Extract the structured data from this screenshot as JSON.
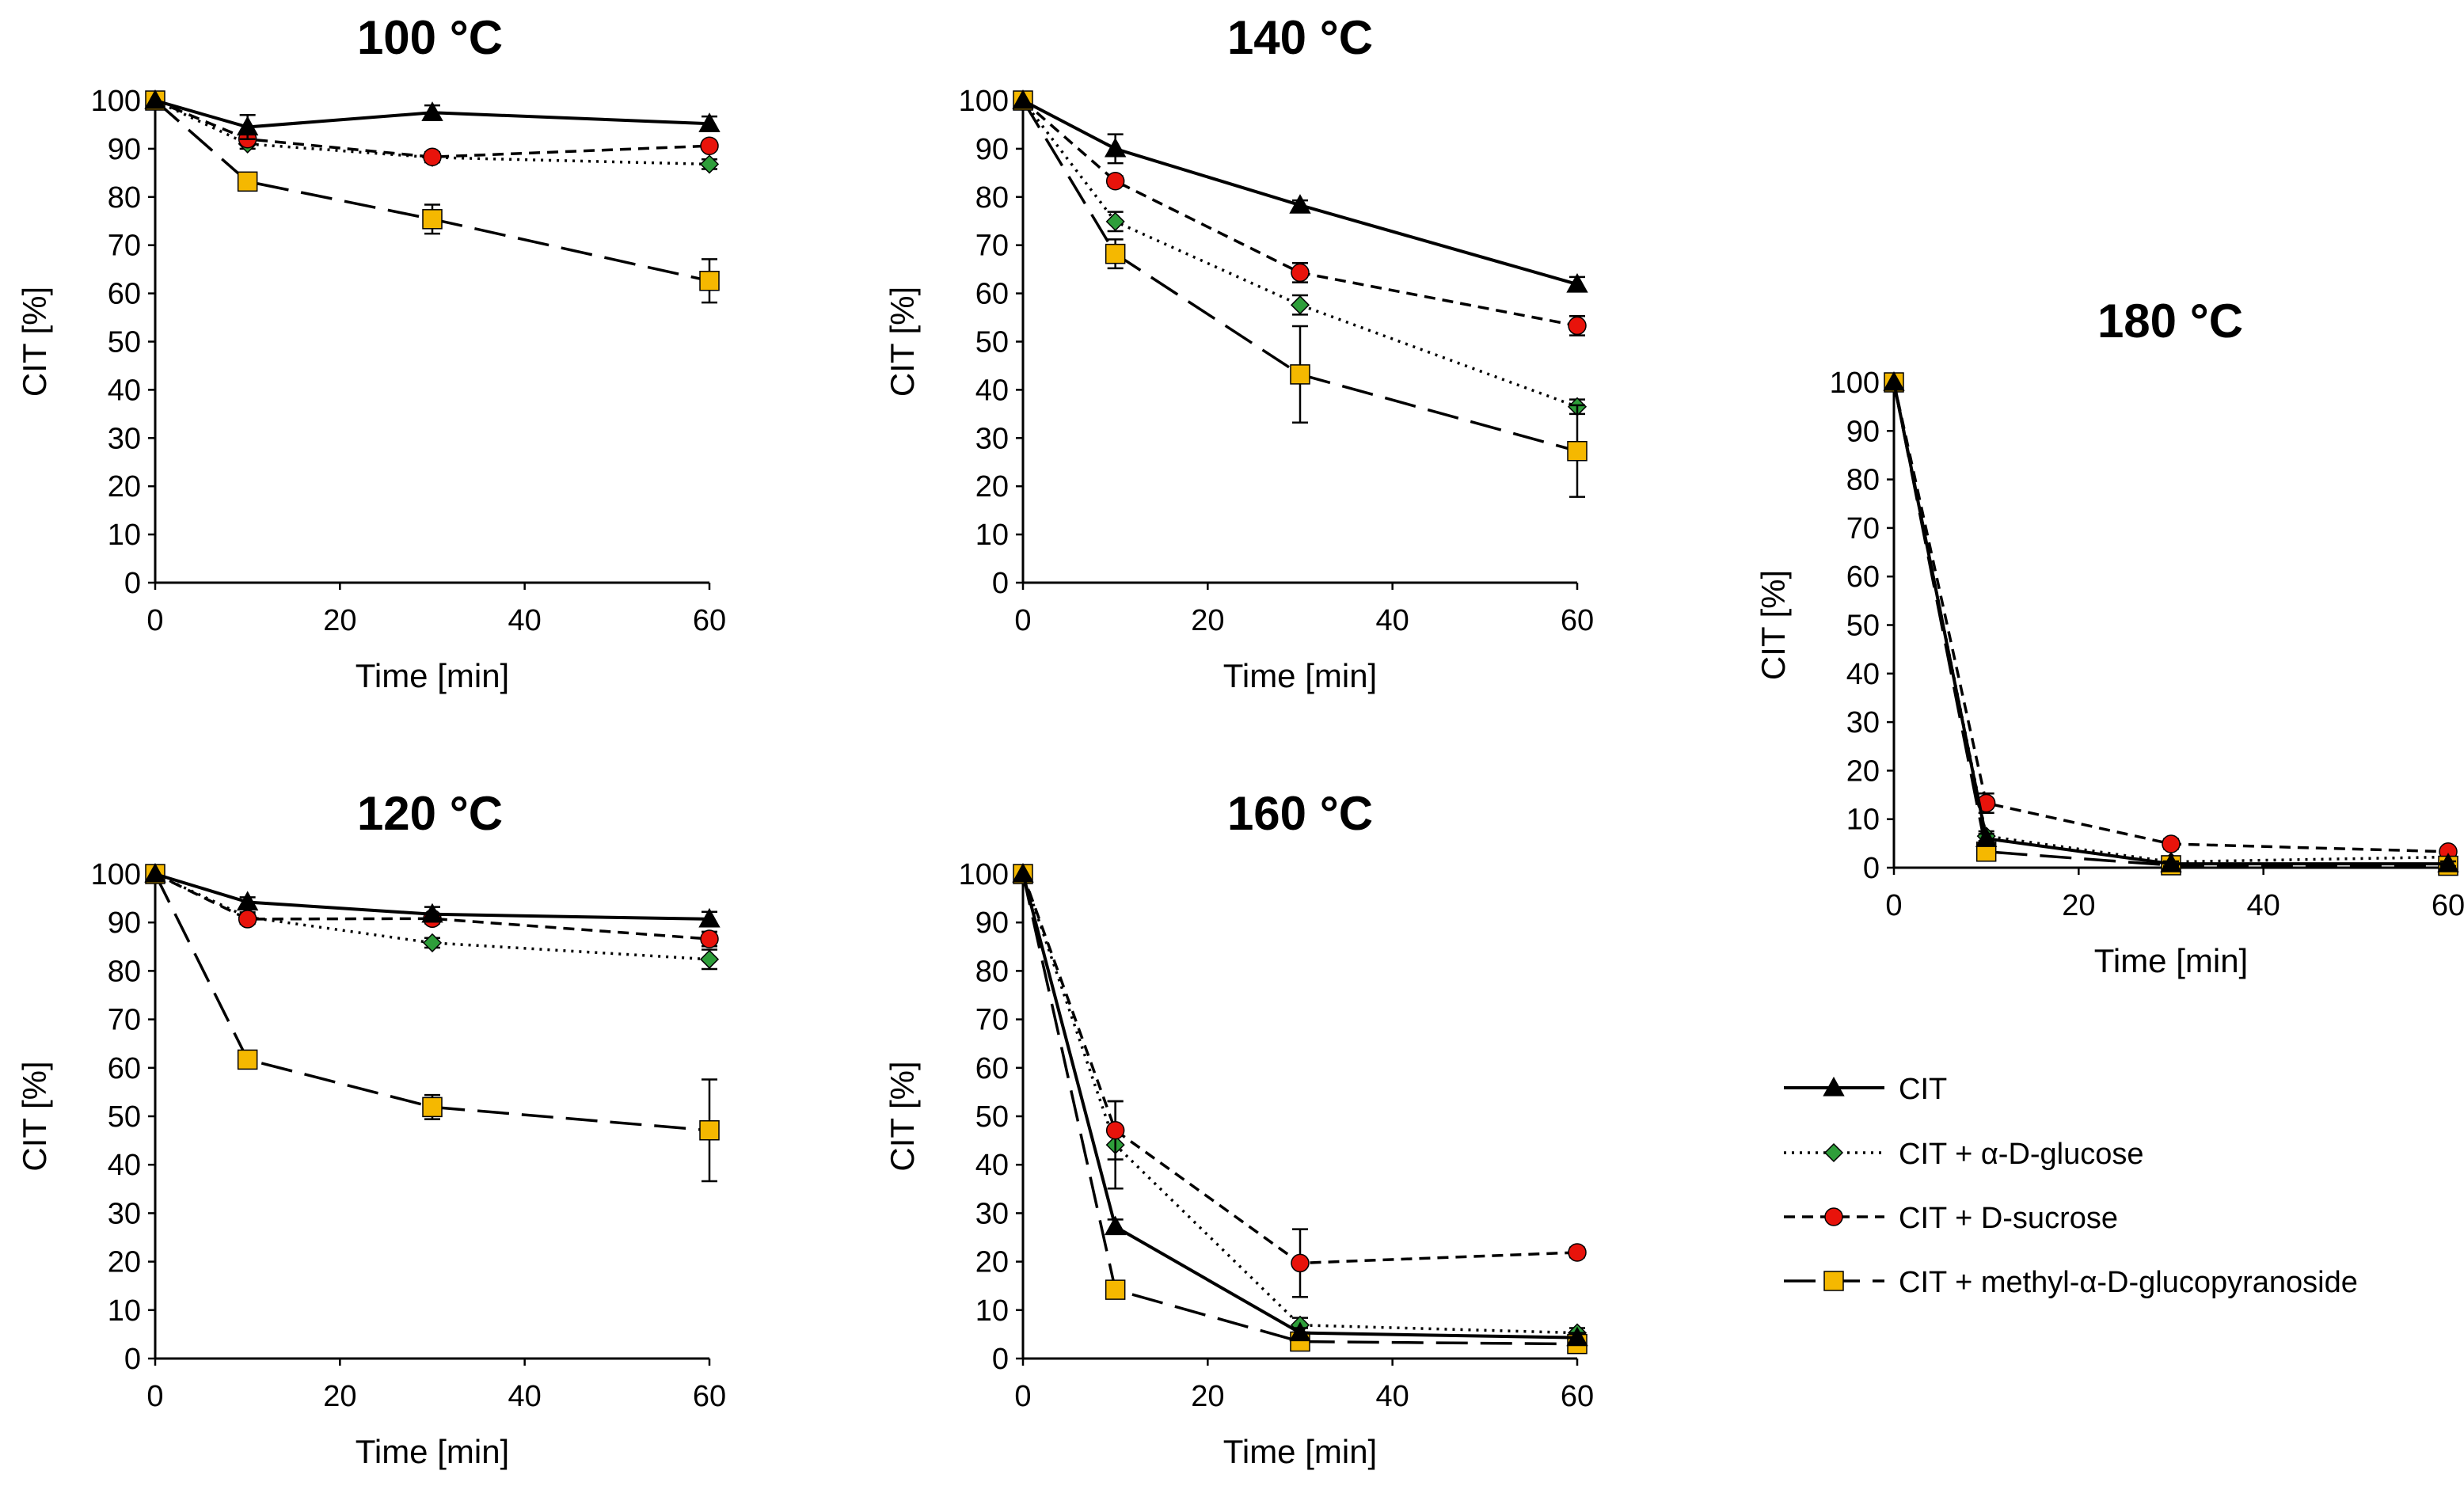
{
  "series_styles": [
    {
      "key": "cit",
      "name": "CIT",
      "marker": "triangle",
      "marker_color": "#000000",
      "dash": "solid"
    },
    {
      "key": "glucose",
      "name": "CIT + α-D-glucose",
      "marker": "diamond",
      "marker_color": "#2E9E3A",
      "dash": "dotted"
    },
    {
      "key": "sucrose",
      "name": "CIT + D-sucrose",
      "marker": "circle",
      "marker_color": "#E8130B",
      "dash": "short-dash"
    },
    {
      "key": "methyl",
      "name": "CIT + methyl-α-D-glucopyranoside",
      "marker": "square",
      "marker_color": "#F5B800",
      "dash": "long-dash"
    }
  ],
  "chart_data": [
    {
      "type": "line",
      "title": "100 °C",
      "xlabel": "Time [min]",
      "ylabel": "CIT [%]",
      "x": [
        0,
        10,
        30,
        60
      ],
      "xlim": [
        0,
        60
      ],
      "ylim": [
        0,
        100
      ],
      "xticks": [
        "0",
        "20",
        "40",
        "60"
      ],
      "yticks": [
        "0",
        "10",
        "20",
        "30",
        "40",
        "50",
        "60",
        "70",
        "80",
        "90",
        "100"
      ],
      "series": [
        {
          "name": "CIT",
          "values": [
            100,
            94.5,
            97.5,
            95.2
          ],
          "errors": [
            0,
            2.5,
            1.5,
            1.5
          ]
        },
        {
          "name": "CIT + α-D-glucose",
          "values": [
            100,
            91,
            88.2,
            86.8
          ],
          "errors": [
            0,
            1,
            1,
            1
          ]
        },
        {
          "name": "CIT + D-sucrose",
          "values": [
            100,
            92,
            88.3,
            90.6
          ],
          "errors": [
            0,
            1,
            1,
            0.5
          ]
        },
        {
          "name": "CIT + methyl-α-D-glucopyranoside",
          "values": [
            100,
            83.2,
            75.4,
            62.6
          ],
          "errors": [
            0,
            0.5,
            3,
            4.5
          ]
        }
      ]
    },
    {
      "type": "line",
      "title": "140 °C",
      "xlabel": "Time [min]",
      "ylabel": "CIT [%]",
      "x": [
        0,
        10,
        30,
        60
      ],
      "xlim": [
        0,
        60
      ],
      "ylim": [
        0,
        100
      ],
      "xticks": [
        "0",
        "20",
        "40",
        "60"
      ],
      "yticks": [
        "0",
        "10",
        "20",
        "30",
        "40",
        "50",
        "60",
        "70",
        "80",
        "90",
        "100"
      ],
      "series": [
        {
          "name": "CIT",
          "values": [
            100,
            90,
            78.3,
            61.9
          ],
          "errors": [
            0,
            3,
            1,
            1.5
          ]
        },
        {
          "name": "CIT + α-D-glucose",
          "values": [
            100,
            74.9,
            57.6,
            36.5
          ],
          "errors": [
            0,
            2,
            2,
            1.5
          ]
        },
        {
          "name": "CIT + D-sucrose",
          "values": [
            100,
            83.3,
            64.3,
            53.3
          ],
          "errors": [
            0,
            1,
            2,
            2
          ]
        },
        {
          "name": "CIT + methyl-α-D-glucopyranoside",
          "values": [
            100,
            68.2,
            43.2,
            27.3
          ],
          "errors": [
            0,
            3,
            10,
            9.5
          ]
        }
      ]
    },
    {
      "type": "line",
      "title": "180 °C",
      "xlabel": "Time [min]",
      "ylabel": "CIT [%]",
      "x": [
        0,
        10,
        30,
        60
      ],
      "xlim": [
        0,
        60
      ],
      "ylim": [
        0,
        100
      ],
      "xticks": [
        "0",
        "20",
        "40",
        "60"
      ],
      "yticks": [
        "0",
        "10",
        "20",
        "30",
        "40",
        "50",
        "60",
        "70",
        "80",
        "90",
        "100"
      ],
      "series": [
        {
          "name": "CIT",
          "values": [
            100,
            6,
            0.8,
            0.8
          ],
          "errors": [
            0,
            1,
            0.5,
            0.5
          ]
        },
        {
          "name": "CIT + α-D-glucose",
          "values": [
            100,
            6.5,
            1.2,
            2.2
          ],
          "errors": [
            0,
            1,
            0.5,
            0.5
          ]
        },
        {
          "name": "CIT + D-sucrose",
          "values": [
            100,
            13.3,
            4.9,
            3.3
          ],
          "errors": [
            0,
            2,
            1,
            0.8
          ]
        },
        {
          "name": "CIT + methyl-α-D-glucopyranoside",
          "values": [
            100,
            3.3,
            0.5,
            0.4
          ],
          "errors": [
            0,
            0.5,
            0.3,
            0.3
          ]
        }
      ]
    },
    {
      "type": "line",
      "title": "120 °C",
      "xlabel": "Time [min]",
      "ylabel": "CIT [%]",
      "x": [
        0,
        10,
        30,
        60
      ],
      "xlim": [
        0,
        60
      ],
      "ylim": [
        0,
        100
      ],
      "xticks": [
        "0",
        "20",
        "40",
        "60"
      ],
      "yticks": [
        "0",
        "10",
        "20",
        "30",
        "40",
        "50",
        "60",
        "70",
        "80",
        "90",
        "100"
      ],
      "series": [
        {
          "name": "CIT",
          "values": [
            100,
            94.2,
            91.7,
            90.7
          ],
          "errors": [
            0,
            1,
            1.5,
            1.5
          ]
        },
        {
          "name": "CIT + α-D-glucose",
          "values": [
            100,
            91.1,
            85.8,
            82.4
          ],
          "errors": [
            0,
            1,
            1,
            2
          ]
        },
        {
          "name": "CIT + D-sucrose",
          "values": [
            100,
            90.7,
            90.8,
            86.6
          ],
          "errors": [
            0,
            1,
            1,
            1.5
          ]
        },
        {
          "name": "CIT + methyl-α-D-glucopyranoside",
          "values": [
            100,
            61.7,
            51.9,
            47.1
          ],
          "errors": [
            0,
            0.5,
            2.5,
            10.5
          ]
        }
      ]
    },
    {
      "type": "line",
      "title": "160 °C",
      "xlabel": "Time [min]",
      "ylabel": "CIT [%]",
      "x": [
        0,
        10,
        30,
        60
      ],
      "xlim": [
        0,
        60
      ],
      "ylim": [
        0,
        100
      ],
      "xticks": [
        "0",
        "20",
        "40",
        "60"
      ],
      "yticks": [
        "0",
        "10",
        "20",
        "30",
        "40",
        "50",
        "60",
        "70",
        "80",
        "90",
        "100"
      ],
      "series": [
        {
          "name": "CIT",
          "values": [
            100,
            27.2,
            5.3,
            4.3
          ],
          "errors": [
            0,
            1.5,
            1,
            1
          ]
        },
        {
          "name": "CIT + α-D-glucose",
          "values": [
            100,
            44.1,
            6.9,
            5.3
          ],
          "errors": [
            0,
            9,
            1.5,
            1
          ]
        },
        {
          "name": "CIT + D-sucrose",
          "values": [
            100,
            47.1,
            19.7,
            21.9
          ],
          "errors": [
            0,
            6,
            7,
            1
          ]
        },
        {
          "name": "CIT + methyl-α-D-glucopyranoside",
          "values": [
            100,
            14.2,
            3.5,
            3.0
          ],
          "errors": [
            0,
            1,
            1,
            1
          ]
        }
      ]
    }
  ]
}
